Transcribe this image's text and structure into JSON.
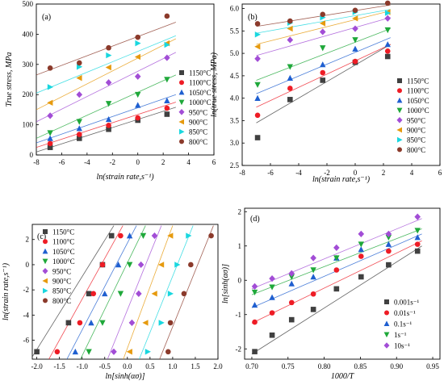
{
  "colors": {
    "s1150": "#404040",
    "s1100": "#ee1c25",
    "s1050": "#1f5fd0",
    "s1000": "#1fa83a",
    "s950": "#a24dd6",
    "s900": "#e69a0e",
    "s850": "#19d7df",
    "s800": "#8b3a2b",
    "r0001": "#404040",
    "r001": "#ee1c25",
    "r01": "#1f5fd0",
    "r1": "#1fa83a",
    "r10": "#a24dd6"
  },
  "chart_data": [
    {
      "id": "a",
      "panel_label": "(a)",
      "type": "scatter",
      "xlabel": "ln(strain rate,s⁻¹)",
      "ylabel": "True stress, MPa",
      "xlim": [
        -8,
        6
      ],
      "ylim": [
        0,
        500
      ],
      "xticks": [
        -8,
        -6,
        -4,
        -2,
        0,
        2,
        4,
        6
      ],
      "yticks": [
        0,
        100,
        200,
        300,
        400,
        500
      ],
      "grid": false,
      "legend_position": "right",
      "x": [
        -6.91,
        -4.61,
        -2.3,
        0,
        2.3
      ],
      "series": [
        {
          "name": "1150°C",
          "marker": "square",
          "color_key": "s1150",
          "values": [
            25,
            55,
            85,
            115,
            135
          ],
          "fit": [
            -8,
            10,
            3,
            158
          ]
        },
        {
          "name": "1100°C",
          "marker": "circle",
          "color_key": "s1100",
          "values": [
            38,
            68,
            98,
            123,
            155
          ],
          "fit": [
            -8,
            25,
            3,
            175
          ]
        },
        {
          "name": "1050°C",
          "marker": "triangle-up",
          "color_key": "s1050",
          "values": [
            55,
            88,
            118,
            165,
            180
          ],
          "fit": [
            -8,
            40,
            3,
            200
          ]
        },
        {
          "name": "1000°C",
          "marker": "triangle-down",
          "color_key": "s1000",
          "values": [
            73,
            110,
            170,
            200,
            250
          ],
          "fit": [
            -8,
            55,
            3,
            265
          ]
        },
        {
          "name": "950°C",
          "marker": "diamond",
          "color_key": "s950",
          "values": [
            130,
            200,
            240,
            260,
            322
          ],
          "fit": [
            -8,
            110,
            3,
            340
          ]
        },
        {
          "name": "900°C",
          "marker": "triangle-left",
          "color_key": "s900",
          "values": [
            173,
            255,
            290,
            325,
            370
          ],
          "fit": [
            -8,
            150,
            3,
            385
          ]
        },
        {
          "name": "850°C",
          "marker": "triangle-right",
          "color_key": "s850",
          "values": [
            225,
            292,
            330,
            370,
            365
          ],
          "fit": [
            -8,
            205,
            3,
            395
          ]
        },
        {
          "name": "800°C",
          "marker": "circle",
          "color_key": "s800",
          "values": [
            288,
            305,
            355,
            390,
            460
          ],
          "fit": [
            -8,
            265,
            3,
            440
          ]
        }
      ]
    },
    {
      "id": "b",
      "panel_label": "(b)",
      "type": "scatter",
      "xlabel": "ln(strain rate,s⁻¹)",
      "ylabel": "ln(true stress, MPa)",
      "xlim": [
        -8,
        6
      ],
      "ylim": [
        2.5,
        6.1
      ],
      "xticks": [
        -8,
        -6,
        -4,
        -2,
        0,
        2,
        4,
        6
      ],
      "yticks": [
        2.5,
        3.0,
        3.5,
        4.0,
        4.5,
        5.0,
        5.5,
        6.0
      ],
      "ytick_labels": [
        "2.5",
        "3.0",
        "3.5",
        "4.0",
        "4.5",
        "5.0",
        "5.5",
        "6.0"
      ],
      "grid": false,
      "legend_position": "right",
      "x": [
        -6.91,
        -4.61,
        -2.3,
        0,
        2.3
      ],
      "series": [
        {
          "name": "1150°C",
          "marker": "square",
          "color_key": "s1150",
          "values": [
            3.12,
            3.97,
            4.4,
            4.8,
            4.93
          ],
          "fit": [
            -7,
            3.45,
            2.5,
            5.2
          ]
        },
        {
          "name": "1100°C",
          "marker": "circle",
          "color_key": "s1100",
          "values": [
            3.62,
            4.22,
            4.57,
            4.82,
            5.05
          ],
          "fit": [
            -7,
            3.8,
            2.5,
            5.2
          ]
        },
        {
          "name": "1050°C",
          "marker": "triangle-up",
          "color_key": "s1050",
          "values": [
            4.0,
            4.45,
            4.75,
            5.1,
            5.2
          ],
          "fit": [
            -7,
            4.1,
            2.5,
            5.35
          ]
        },
        {
          "name": "1000°C",
          "marker": "triangle-down",
          "color_key": "s1000",
          "values": [
            4.3,
            4.7,
            5.12,
            5.3,
            5.52
          ],
          "fit": [
            -7,
            4.4,
            2.5,
            5.55
          ]
        },
        {
          "name": "950°C",
          "marker": "diamond",
          "color_key": "s950",
          "values": [
            4.88,
            5.3,
            5.48,
            5.55,
            5.78
          ],
          "fit": [
            -7,
            4.95,
            2.5,
            5.8
          ]
        },
        {
          "name": "900°C",
          "marker": "triangle-left",
          "color_key": "s900",
          "values": [
            5.15,
            5.55,
            5.67,
            5.78,
            5.92
          ],
          "fit": [
            -7,
            5.2,
            2.5,
            5.95
          ]
        },
        {
          "name": "850°C",
          "marker": "triangle-right",
          "color_key": "s850",
          "values": [
            5.42,
            5.68,
            5.8,
            5.92,
            5.9
          ],
          "fit": [
            -7,
            5.45,
            2.5,
            5.98
          ]
        },
        {
          "name": "800°C",
          "marker": "circle",
          "color_key": "s800",
          "values": [
            5.66,
            5.72,
            5.87,
            5.96,
            6.12
          ],
          "fit": [
            -7,
            5.6,
            2.5,
            6.08
          ]
        }
      ]
    },
    {
      "id": "c",
      "panel_label": "(c)",
      "type": "scatter",
      "xlabel": "ln[sinh(ασ)]",
      "ylabel": "ln(strain rate,s⁻¹)",
      "xlim": [
        -2.1,
        2.0
      ],
      "ylim": [
        -7.5,
        3.2
      ],
      "xticks": [
        -2.0,
        -1.5,
        -1.0,
        -0.5,
        0.0,
        0.5,
        1.0,
        1.5,
        2.0
      ],
      "xtick_labels": [
        "-2.0",
        "-1.5",
        "-1.0",
        "-0.5",
        "0.0",
        "0.5",
        "1.0",
        "1.5",
        "2.0"
      ],
      "yticks": [
        -6,
        -4,
        -2,
        0,
        2
      ],
      "grid": false,
      "legend_position": "top-left",
      "y": [
        -6.91,
        -4.61,
        -2.3,
        0,
        2.3
      ],
      "series": [
        {
          "name": "1150°C",
          "marker": "square",
          "color_key": "s1150",
          "xvalues": [
            -2.0,
            -1.3,
            -0.85,
            -0.55,
            -0.35
          ],
          "fit": [
            -2.15,
            -7.6,
            -0.3,
            3.1
          ]
        },
        {
          "name": "1100°C",
          "marker": "circle",
          "color_key": "s1100",
          "xvalues": [
            -1.55,
            -1.05,
            -0.75,
            -0.55,
            -0.15
          ],
          "fit": [
            -1.75,
            -7.6,
            -0.1,
            3.1
          ]
        },
        {
          "name": "1050°C",
          "marker": "triangle-up",
          "color_key": "s1050",
          "xvalues": [
            -1.15,
            -0.8,
            -0.5,
            -0.2,
            0.05
          ],
          "fit": [
            -1.35,
            -7.6,
            0.2,
            3.1
          ]
        },
        {
          "name": "1000°C",
          "marker": "triangle-down",
          "color_key": "s1000",
          "xvalues": [
            -0.85,
            -0.55,
            -0.15,
            0.05,
            0.35
          ],
          "fit": [
            -1.05,
            -7.6,
            0.4,
            3.1
          ]
        },
        {
          "name": "950°C",
          "marker": "diamond",
          "color_key": "s950",
          "xvalues": [
            -0.3,
            0.1,
            0.25,
            0.3,
            0.6
          ],
          "fit": [
            -0.45,
            -7.6,
            0.75,
            3.1
          ]
        },
        {
          "name": "900°C",
          "marker": "triangle-left",
          "color_key": "s900",
          "xvalues": [
            0.05,
            0.4,
            0.6,
            0.75,
            0.95
          ],
          "fit": [
            -0.1,
            -7.6,
            1.0,
            3.1
          ]
        },
        {
          "name": "850°C",
          "marker": "triangle-right",
          "color_key": "s850",
          "xvalues": [
            0.45,
            0.75,
            0.95,
            1.1,
            1.35
          ],
          "fit": [
            0.25,
            -7.6,
            1.45,
            3.1
          ]
        },
        {
          "name": "800°C",
          "marker": "circle",
          "color_key": "s800",
          "xvalues": [
            0.9,
            0.95,
            1.25,
            1.4,
            1.85
          ],
          "fit": [
            0.7,
            -7.6,
            1.9,
            3.1
          ]
        }
      ]
    },
    {
      "id": "d",
      "panel_label": "(d)",
      "type": "scatter",
      "xlabel": "1000/T",
      "ylabel": "ln[sinh(ασ)]",
      "xlim": [
        0.69,
        0.96
      ],
      "ylim": [
        -2.3,
        2.1
      ],
      "xticks": [
        0.7,
        0.75,
        0.8,
        0.85,
        0.9,
        0.95
      ],
      "xtick_labels": [
        "0.70",
        "0.75",
        "0.80",
        "0.85",
        "0.90",
        "0.95"
      ],
      "yticks": [
        -2,
        -1,
        0,
        1,
        2
      ],
      "grid": false,
      "legend_position": "bottom-right",
      "x": [
        0.704,
        0.728,
        0.755,
        0.785,
        0.817,
        0.851,
        0.889,
        0.929
      ],
      "series": [
        {
          "name": "0.001s⁻¹",
          "marker": "square",
          "color_key": "r0001",
          "values": [
            -2.08,
            -1.6,
            -1.15,
            -0.85,
            -0.25,
            0.1,
            0.45,
            0.85
          ],
          "fit": [
            0.7,
            -2.15,
            0.935,
            1.0
          ]
        },
        {
          "name": "0.01s⁻¹",
          "marker": "circle",
          "color_key": "r001",
          "values": [
            -1.22,
            -0.95,
            -0.65,
            -0.4,
            0.3,
            0.7,
            0.85,
            1.05
          ],
          "fit": [
            0.7,
            -1.25,
            0.935,
            1.15
          ]
        },
        {
          "name": "0.1s⁻¹",
          "marker": "triangle-up",
          "color_key": "r01",
          "values": [
            -0.72,
            -0.5,
            -0.1,
            0.1,
            0.65,
            0.9,
            1.05,
            1.25
          ],
          "fit": [
            0.7,
            -0.8,
            0.935,
            1.35
          ]
        },
        {
          "name": "1s⁻¹",
          "marker": "triangle-down",
          "color_key": "r1",
          "values": [
            -0.35,
            -0.2,
            0.1,
            0.3,
            0.65,
            1.05,
            1.25,
            1.45
          ],
          "fit": [
            0.7,
            -0.42,
            0.935,
            1.5
          ]
        },
        {
          "name": "10s⁻¹",
          "marker": "diamond",
          "color_key": "r10",
          "values": [
            -0.18,
            0.05,
            0.2,
            0.65,
            0.95,
            1.35,
            1.35,
            1.85
          ],
          "fit": [
            0.7,
            -0.25,
            0.935,
            1.8
          ]
        }
      ]
    }
  ]
}
